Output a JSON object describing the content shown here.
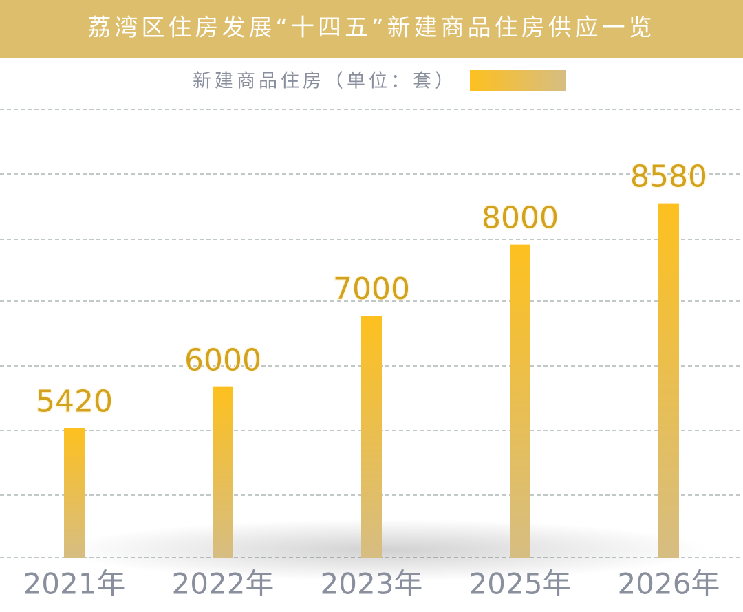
{
  "chart_data": {
    "type": "bar",
    "title": "荔湾区住房发展“十四五”新建商品住房供应一览",
    "categories": [
      "2021年",
      "2022年",
      "2023年",
      "2025年",
      "2026年"
    ],
    "series": [
      {
        "name": "新建商品住房（单位：套）",
        "color": "#fbbf24",
        "values": [
          5420,
          6000,
          7000,
          8000,
          8580
        ]
      }
    ],
    "ylim": [
      3600,
      9900
    ]
  }
}
